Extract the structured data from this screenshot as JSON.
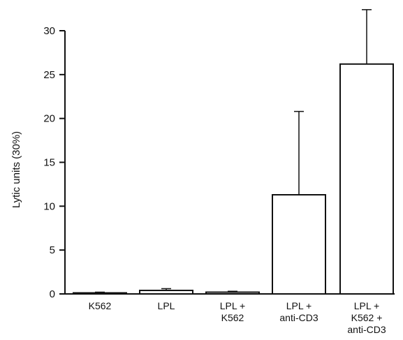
{
  "chart_data": {
    "type": "bar",
    "ylabel": "Lytic units (30%)",
    "ylim": [
      0,
      30
    ],
    "yticks": [
      0,
      5,
      10,
      15,
      20,
      25,
      30
    ],
    "categories": [
      [
        "K562"
      ],
      [
        "LPL"
      ],
      [
        "LPL +",
        "K562"
      ],
      [
        "LPL +",
        "anti-CD3"
      ],
      [
        "LPL +",
        "K562 +",
        "anti-CD3"
      ]
    ],
    "values": [
      0.1,
      0.4,
      0.2,
      11.3,
      26.2
    ],
    "errors": [
      0.1,
      0.2,
      0.1,
      9.5,
      6.2
    ],
    "grid": false
  }
}
